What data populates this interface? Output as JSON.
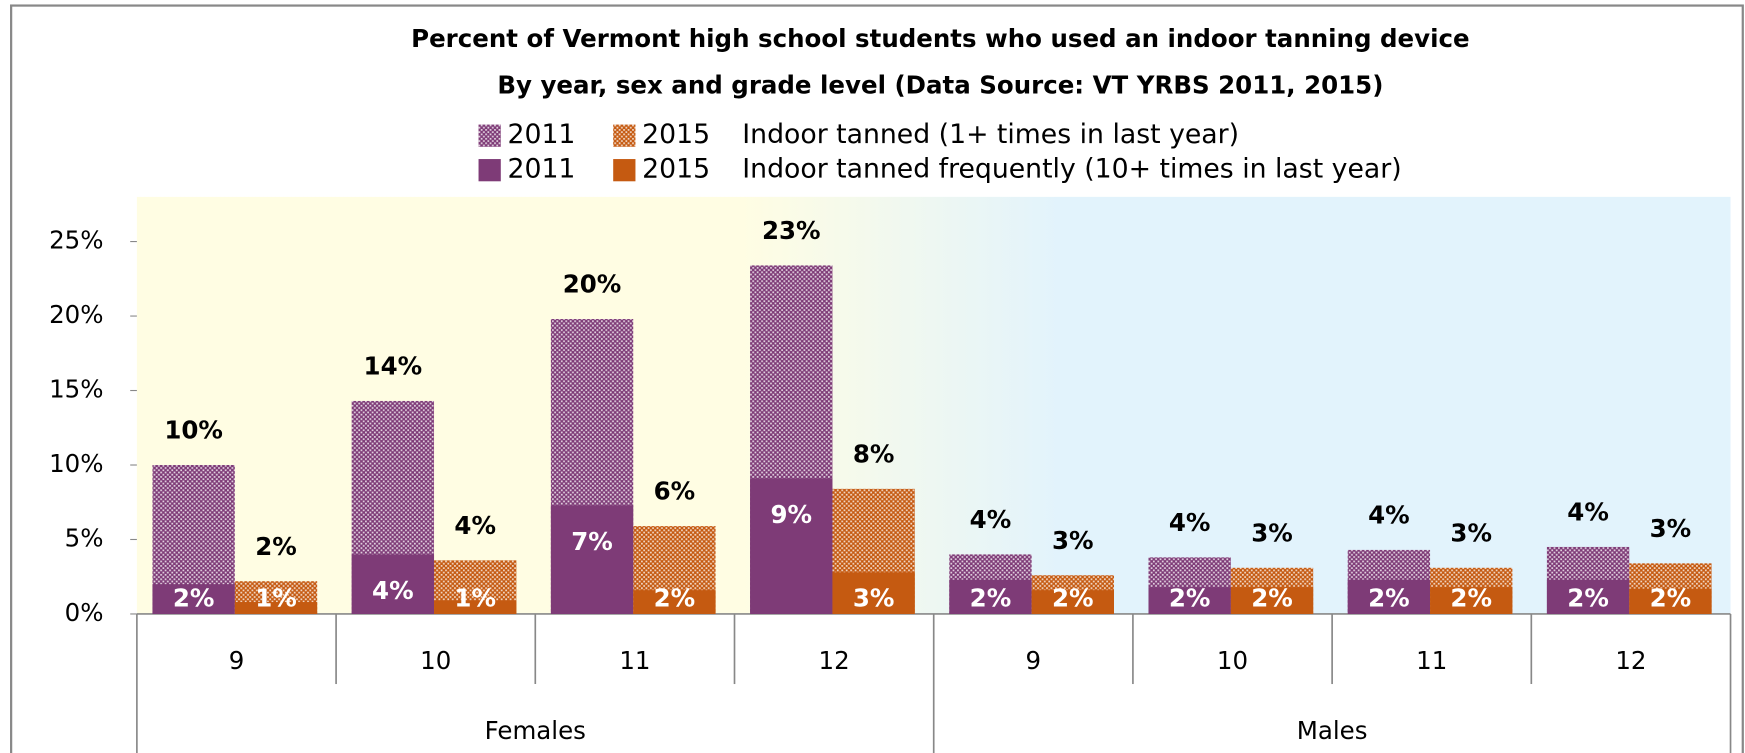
{
  "chart_data": {
    "type": "bar",
    "title": "Percent of Vermont high school students who used an indoor tanning device",
    "subtitle": "By year, sex and grade level (Data Source: VT YRBS 2011, 2015)",
    "groups": [
      {
        "name": "Females",
        "categories": [
          "9",
          "10",
          "11",
          "12"
        ]
      },
      {
        "name": "Males",
        "categories": [
          "9",
          "10",
          "11",
          "12"
        ]
      }
    ],
    "series_groups": [
      {
        "name": "Indoor tanned (1+ times in last year)",
        "pattern": "dotted",
        "series": [
          {
            "name": "2011",
            "color": "#7e3b77",
            "values": [
              10.0,
              14.3,
              19.8,
              23.4,
              4.0,
              3.8,
              4.3,
              4.5
            ],
            "value_labels": [
              "10%",
              "14%",
              "20%",
              "23%",
              "4%",
              "4%",
              "4%",
              "4%"
            ]
          },
          {
            "name": "2015",
            "color": "#c55a11",
            "values": [
              2.2,
              3.6,
              5.9,
              8.4,
              2.6,
              3.1,
              3.1,
              3.4
            ],
            "value_labels": [
              "2%",
              "4%",
              "6%",
              "8%",
              "3%",
              "3%",
              "3%",
              "3%"
            ]
          }
        ]
      },
      {
        "name": "Indoor tanned frequently (10+ times in last year)",
        "pattern": "solid",
        "series": [
          {
            "name": "2011",
            "color": "#7e3b77",
            "values": [
              2.0,
              4.0,
              7.3,
              9.1,
              2.3,
              1.8,
              2.3,
              2.3
            ],
            "value_labels": [
              "2%",
              "4%",
              "7%",
              "9%",
              "2%",
              "2%",
              "2%",
              "2%"
            ]
          },
          {
            "name": "2015",
            "color": "#c55a11",
            "values": [
              0.8,
              0.9,
              1.6,
              2.8,
              1.6,
              1.8,
              1.8,
              1.7
            ],
            "value_labels": [
              "1%",
              "1%",
              "2%",
              "3%",
              "2%",
              "2%",
              "2%",
              "2%"
            ]
          }
        ]
      }
    ],
    "ylim": [
      0,
      28
    ],
    "yticks": [
      {
        "value": 0,
        "label": "0%"
      },
      {
        "value": 5,
        "label": "5%"
      },
      {
        "value": 10,
        "label": "10%"
      },
      {
        "value": 15,
        "label": "15%"
      },
      {
        "value": 20,
        "label": "20%"
      },
      {
        "value": 25,
        "label": "25%"
      }
    ]
  }
}
